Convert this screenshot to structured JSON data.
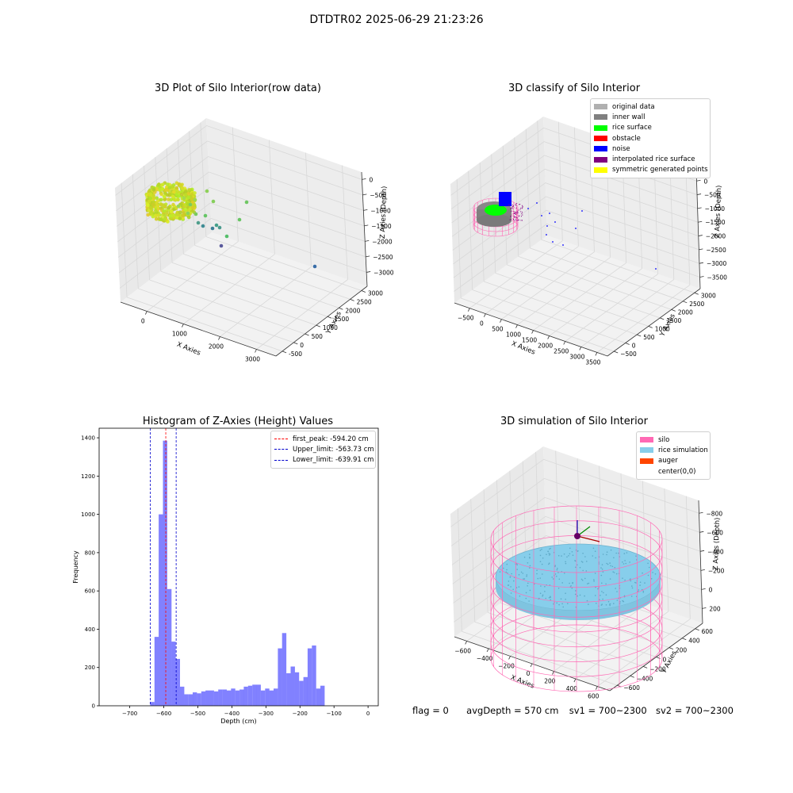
{
  "suptitle": "DTDTR02 2025-06-29 21:23:26",
  "footer": {
    "flag": "flag = 0",
    "avg": "avgDepth = 570 cm",
    "sv1": "sv1 = 700~2300",
    "sv2": "sv2 = 700~2300"
  },
  "chart_data": [
    {
      "id": "raw3d",
      "type": "scatter",
      "title": "3D Plot of Silo Interior(row data)",
      "xlabel": "X Axies",
      "ylabel": "Y Axies",
      "zlabel": "Z Axies (Depth)",
      "xticks": [
        "0",
        "1000",
        "2000",
        "3000"
      ],
      "yticks": [
        "-500",
        "0",
        "500",
        "1000",
        "1500",
        "2000",
        "2500",
        "3000"
      ],
      "zticks": [
        "0",
        "−500",
        "−1000",
        "−1500",
        "−2000",
        "−2500",
        "−3000"
      ],
      "grid": true
    },
    {
      "id": "classify3d",
      "type": "scatter",
      "title": "3D classify of Silo Interior",
      "xlabel": "X Axies",
      "ylabel": "Y Axies",
      "zlabel": "Z Axies (Depth)",
      "xticks": [
        "−500",
        "0",
        "500",
        "1000",
        "1500",
        "2000",
        "2500",
        "3000",
        "3500"
      ],
      "yticks": [
        "−500",
        "0",
        "500",
        "1000",
        "1500",
        "2000",
        "2500",
        "3000"
      ],
      "zticks": [
        "0",
        "−500",
        "−1000",
        "−1500",
        "−2000",
        "−2500",
        "−3000",
        "−3500"
      ],
      "legend": [
        {
          "label": "original data",
          "color": "#b0b0b0"
        },
        {
          "label": "inner wall",
          "color": "#808080"
        },
        {
          "label": "rice surface",
          "color": "#00ff00"
        },
        {
          "label": "obstacle",
          "color": "#ff0000"
        },
        {
          "label": "noise",
          "color": "#0000ff"
        },
        {
          "label": "interpolated rice surface",
          "color": "#800080"
        },
        {
          "label": "symmetric generated points",
          "color": "#ffff00"
        }
      ],
      "legend_position": "top-right",
      "grid": true
    },
    {
      "id": "histogram",
      "type": "bar",
      "title": "Histogram of Z-Axies (Height) Values",
      "xlabel": "Depth (cm)",
      "ylabel": "Frequency",
      "xlim": [
        -790,
        30
      ],
      "ylim": [
        0,
        1450
      ],
      "xticks": [
        -700,
        -600,
        -500,
        -400,
        -300,
        -200,
        -100,
        0
      ],
      "yticks": [
        0,
        200,
        400,
        600,
        800,
        1000,
        1200,
        1400
      ],
      "bin_width": 12.5,
      "bins": [
        {
          "x": -640,
          "count": 20
        },
        {
          "x": -627.5,
          "count": 360
        },
        {
          "x": -615,
          "count": 1000
        },
        {
          "x": -602.5,
          "count": 1385
        },
        {
          "x": -590,
          "count": 610
        },
        {
          "x": -577.5,
          "count": 335
        },
        {
          "x": -565,
          "count": 245
        },
        {
          "x": -552.5,
          "count": 100
        },
        {
          "x": -540,
          "count": 60
        },
        {
          "x": -527.5,
          "count": 60
        },
        {
          "x": -515,
          "count": 70
        },
        {
          "x": -502.5,
          "count": 65
        },
        {
          "x": -490,
          "count": 75
        },
        {
          "x": -477.5,
          "count": 80
        },
        {
          "x": -465,
          "count": 80
        },
        {
          "x": -452.5,
          "count": 75
        },
        {
          "x": -440,
          "count": 85
        },
        {
          "x": -427.5,
          "count": 85
        },
        {
          "x": -415,
          "count": 80
        },
        {
          "x": -402.5,
          "count": 90
        },
        {
          "x": -390,
          "count": 80
        },
        {
          "x": -377.5,
          "count": 85
        },
        {
          "x": -365,
          "count": 100
        },
        {
          "x": -352.5,
          "count": 105
        },
        {
          "x": -340,
          "count": 110
        },
        {
          "x": -327.5,
          "count": 110
        },
        {
          "x": -315,
          "count": 80
        },
        {
          "x": -302.5,
          "count": 90
        },
        {
          "x": -290,
          "count": 80
        },
        {
          "x": -277.5,
          "count": 90
        },
        {
          "x": -265,
          "count": 300
        },
        {
          "x": -252.5,
          "count": 380
        },
        {
          "x": -240,
          "count": 170
        },
        {
          "x": -227.5,
          "count": 205
        },
        {
          "x": -215,
          "count": 175
        },
        {
          "x": -202.5,
          "count": 130
        },
        {
          "x": -190,
          "count": 150
        },
        {
          "x": -177.5,
          "count": 300
        },
        {
          "x": -165,
          "count": 315
        },
        {
          "x": -152.5,
          "count": 90
        },
        {
          "x": -140,
          "count": 105
        }
      ],
      "color": "#5050ff",
      "vlines": [
        {
          "label": "first_peak: -594.20 cm",
          "value": -594.2,
          "color": "#ff0000"
        },
        {
          "label": "Upper_limit: -563.73 cm",
          "value": -563.73,
          "color": "#0000cc"
        },
        {
          "label": "Lower_limit: -639.91 cm",
          "value": -639.91,
          "color": "#0000cc"
        }
      ],
      "legend_position": "top-right"
    },
    {
      "id": "sim3d",
      "type": "scatter",
      "title": "3D simulation of Silo Interior",
      "xlabel": "X Axies",
      "ylabel": "Y Axies",
      "zlabel": "Z Axies (Depth)",
      "xticks": [
        "−600",
        "−400",
        "−200",
        "0",
        "200",
        "400",
        "600"
      ],
      "yticks": [
        "−600",
        "−400",
        "−200",
        "0",
        "200",
        "400",
        "600"
      ],
      "zticks": [
        "200",
        "0",
        "−200",
        "−400",
        "−600",
        "−800"
      ],
      "legend": [
        {
          "label": "silo",
          "color": "#ff69b4"
        },
        {
          "label": "rice simulation",
          "color": "#87ceeb"
        },
        {
          "label": "auger",
          "color": "#ff4500"
        },
        {
          "label": "center(0,0)",
          "color": ""
        }
      ],
      "legend_position": "top-right",
      "grid": true
    }
  ]
}
